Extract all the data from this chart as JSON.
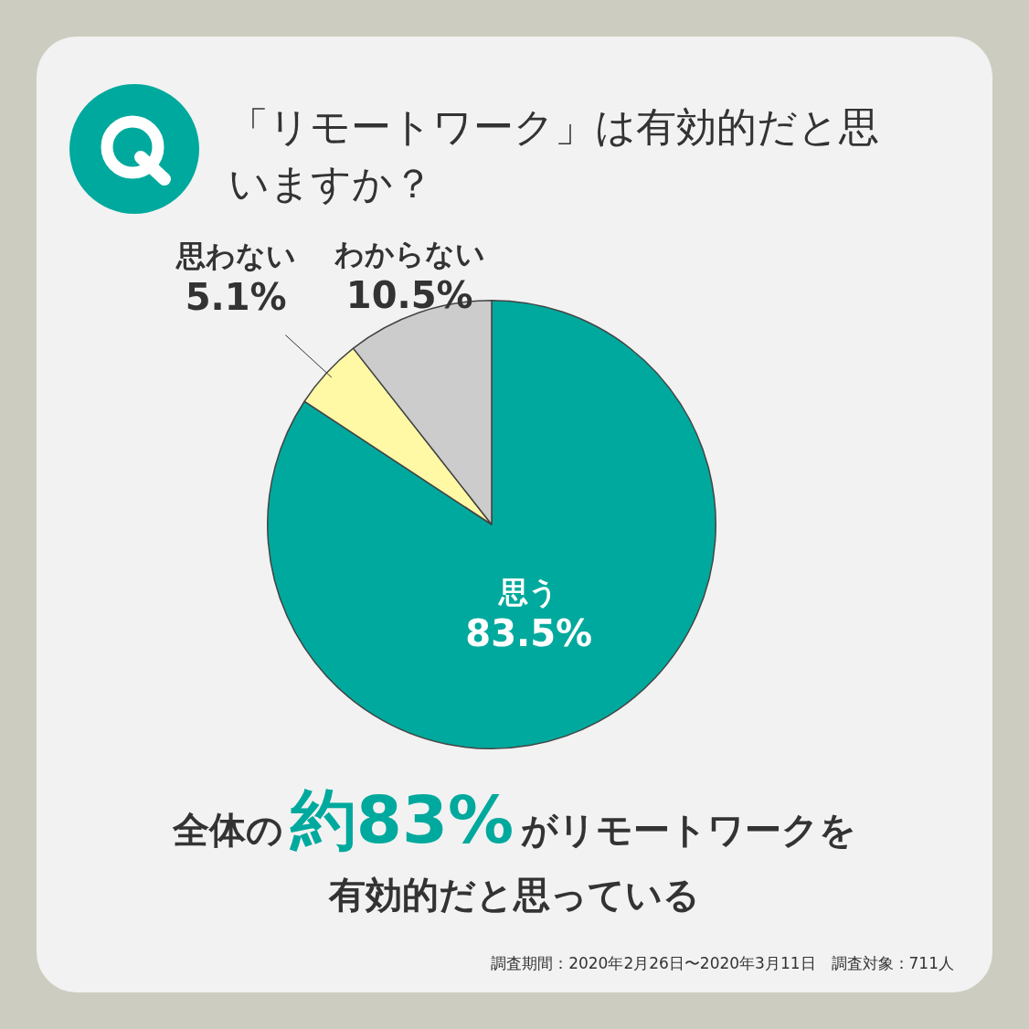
{
  "chart_data": {
    "type": "pie",
    "title": "「リモートワーク」は有効的だと思いますか？",
    "categories": [
      "思う",
      "思わない",
      "わからない"
    ],
    "values": [
      83.5,
      5.1,
      10.5
    ],
    "colors": [
      "#00a99d",
      "#fff9a6",
      "#cccccc"
    ],
    "value_labels": [
      "83.5%",
      "5.1%",
      "10.5%"
    ],
    "data_labels": true,
    "legend": false,
    "annotations": [
      "全体の",
      "約83%",
      "がリモートワークを",
      "有効的だと思っている",
      "調査期間：2020年2月26日〜2020年3月11日　調査対象：711人"
    ]
  }
}
